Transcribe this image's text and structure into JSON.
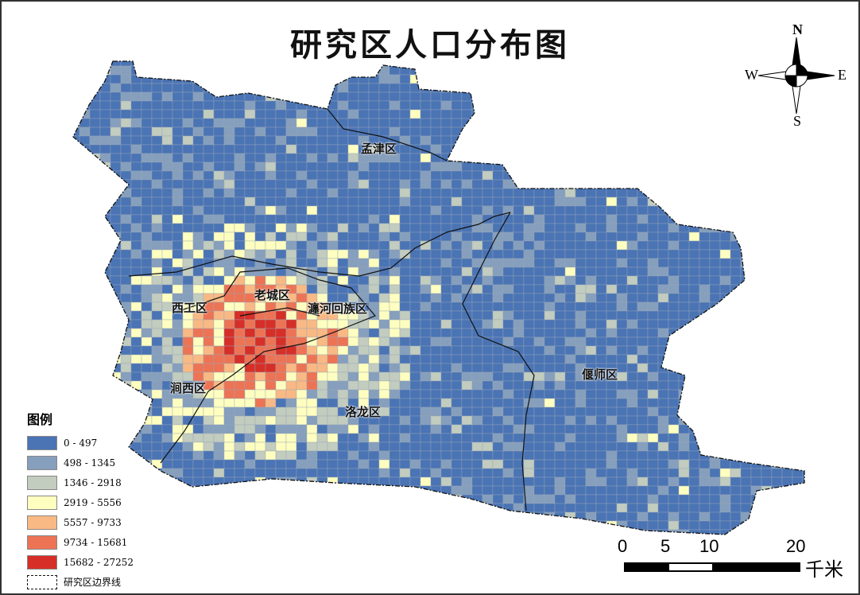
{
  "title": "研究区人口分布图",
  "districts": [
    "孟津区",
    "老城区",
    "瀍河回族区",
    "西工区",
    "涧西区",
    "洛龙区",
    "偃师区"
  ],
  "legend": {
    "title": "图例",
    "classes": [
      {
        "label": "0 - 497",
        "color": "#4a74b4"
      },
      {
        "label": "498 - 1345",
        "color": "#859fbd"
      },
      {
        "label": "1346 - 2918",
        "color": "#c2ccbf"
      },
      {
        "label": "2919 - 5556",
        "color": "#fefec0"
      },
      {
        "label": "5557 - 9733",
        "color": "#f9b984"
      },
      {
        "label": "9734 - 15681",
        "color": "#ec7455"
      },
      {
        "label": "15682 - 27252",
        "color": "#d62f27"
      }
    ],
    "boundary_label": "研究区边界线"
  },
  "scale": {
    "ticks": [
      "0",
      "5",
      "10",
      "20"
    ],
    "unit": "千米"
  },
  "compass": {
    "n": "N",
    "s": "S",
    "e": "E",
    "w": "W"
  }
}
